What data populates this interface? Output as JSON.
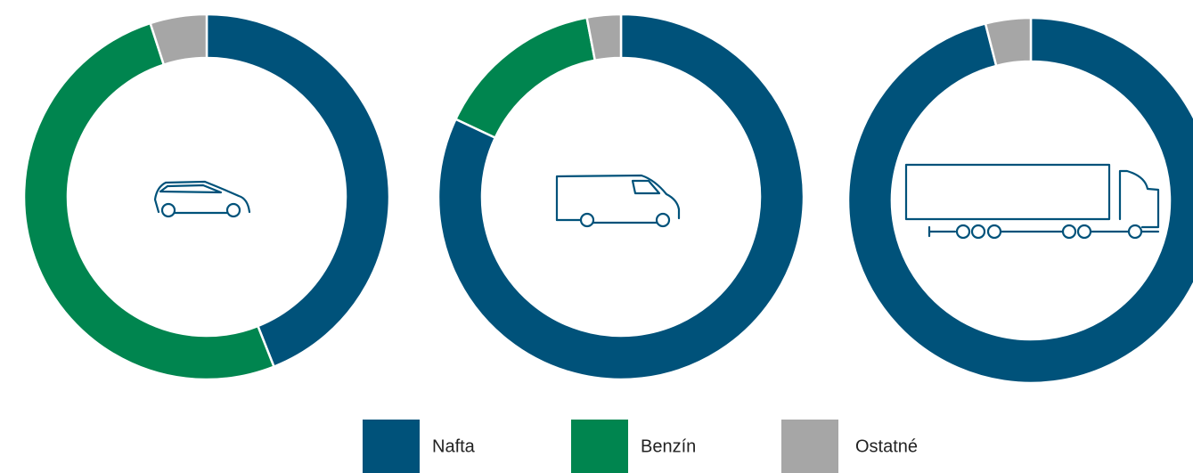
{
  "chart_data": [
    {
      "type": "donut",
      "categories": [
        "Nafta",
        "Benzín",
        "Ostatné"
      ],
      "values": [
        44,
        51,
        5
      ],
      "colors": [
        "#00527a",
        "#00854f",
        "#a6a6a6"
      ]
    },
    {
      "type": "donut",
      "categories": [
        "Nafta",
        "Benzín",
        "Ostatné"
      ],
      "values": [
        82,
        15,
        3
      ],
      "colors": [
        "#00527a",
        "#00854f",
        "#a6a6a6"
      ]
    },
    {
      "type": "donut",
      "categories": [
        "Nafta",
        "Benzín",
        "Ostatné"
      ],
      "values": [
        96,
        0,
        4
      ],
      "colors": [
        "#00527a",
        "#00854f",
        "#a6a6a6"
      ]
    }
  ]
}
